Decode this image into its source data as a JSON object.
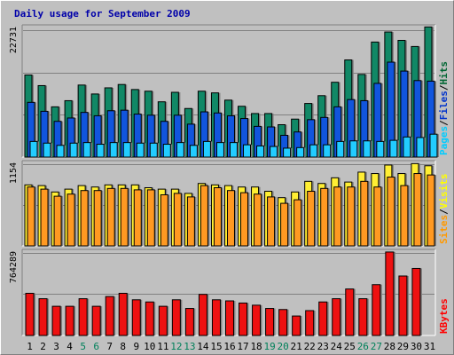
{
  "chart_data": [
    {
      "type": "bar",
      "title": "Daily usage for September 2009",
      "max_label": "22731",
      "ymax": 22731,
      "categories": [
        "1",
        "2",
        "3",
        "4",
        "5",
        "6",
        "7",
        "8",
        "9",
        "10",
        "11",
        "12",
        "13",
        "14",
        "15",
        "16",
        "17",
        "18",
        "19",
        "20",
        "21",
        "22",
        "23",
        "24",
        "25",
        "26",
        "27",
        "28",
        "29",
        "30",
        "31"
      ],
      "weekend_days": [
        "5",
        "6",
        "12",
        "13",
        "19",
        "20",
        "26",
        "27"
      ],
      "legend": [
        {
          "label": "Hits",
          "color": "#006633"
        },
        {
          "label": "Files",
          "color": "#0033cc"
        },
        {
          "label": "Pages",
          "color": "#00ccff"
        }
      ],
      "series": [
        {
          "name": "Hits",
          "color": "#118866",
          "values": [
            14700,
            12800,
            9000,
            10100,
            12900,
            11300,
            12400,
            13000,
            12100,
            11800,
            9900,
            11600,
            8700,
            11800,
            11500,
            10200,
            9100,
            7800,
            7800,
            5800,
            6800,
            9600,
            11000,
            13400,
            17400,
            14800,
            20600,
            22400,
            20900,
            19800,
            23300
          ]
        },
        {
          "name": "Files",
          "color": "#1155dd",
          "values": [
            9800,
            8200,
            6400,
            7000,
            8000,
            7400,
            8300,
            8400,
            7700,
            7500,
            6400,
            7500,
            5900,
            8100,
            7900,
            7400,
            6900,
            5500,
            5400,
            3900,
            4500,
            6700,
            7100,
            9000,
            10300,
            10100,
            13200,
            17000,
            15400,
            13700,
            13600
          ]
        },
        {
          "name": "Pages",
          "color": "#22ccff",
          "values": [
            2800,
            2500,
            2100,
            2500,
            2600,
            2300,
            2600,
            2600,
            2500,
            2500,
            2300,
            2600,
            2100,
            2800,
            2600,
            2600,
            2200,
            2000,
            1900,
            1600,
            1700,
            2200,
            2200,
            2800,
            2900,
            2900,
            2800,
            3000,
            3600,
            3500,
            4100
          ]
        }
      ]
    },
    {
      "type": "bar",
      "max_label": "1154",
      "ymax": 1154,
      "categories": [
        "1",
        "2",
        "3",
        "4",
        "5",
        "6",
        "7",
        "8",
        "9",
        "10",
        "11",
        "12",
        "13",
        "14",
        "15",
        "16",
        "17",
        "18",
        "19",
        "20",
        "21",
        "22",
        "23",
        "24",
        "25",
        "26",
        "27",
        "28",
        "29",
        "30",
        "31"
      ],
      "legend": [
        {
          "label": "Visits",
          "color": "#ffff00"
        },
        {
          "label": "Sites",
          "color": "#ff9900"
        }
      ],
      "series": [
        {
          "name": "Visits",
          "color": "#ffee33",
          "values": [
            860,
            850,
            760,
            800,
            850,
            830,
            860,
            860,
            860,
            820,
            800,
            800,
            740,
            880,
            860,
            850,
            830,
            830,
            770,
            680,
            760,
            910,
            880,
            960,
            900,
            1040,
            1020,
            1140,
            1020,
            1160,
            1130
          ]
        },
        {
          "name": "Sites",
          "color": "#ff9922",
          "values": [
            830,
            800,
            700,
            730,
            780,
            780,
            810,
            810,
            790,
            790,
            720,
            740,
            690,
            850,
            820,
            780,
            750,
            730,
            690,
            600,
            650,
            770,
            810,
            830,
            830,
            910,
            830,
            970,
            850,
            1020,
            1000
          ]
        }
      ]
    },
    {
      "type": "bar",
      "max_label": "764289",
      "ymax": 764289,
      "ylabel": "KBytes",
      "categories": [
        "1",
        "2",
        "3",
        "4",
        "5",
        "6",
        "7",
        "8",
        "9",
        "10",
        "11",
        "12",
        "13",
        "14",
        "15",
        "16",
        "17",
        "18",
        "19",
        "20",
        "21",
        "22",
        "23",
        "24",
        "25",
        "26",
        "27",
        "28",
        "29",
        "30",
        "31"
      ],
      "legend": [
        {
          "label": "KBytes",
          "color": "#ff0000"
        }
      ],
      "series": [
        {
          "name": "KBytes",
          "color": "#ee1111",
          "values": [
            390000,
            340000,
            270000,
            270000,
            340000,
            270000,
            360000,
            390000,
            330000,
            310000,
            270000,
            330000,
            250000,
            380000,
            330000,
            320000,
            300000,
            280000,
            250000,
            240000,
            180000,
            230000,
            310000,
            340000,
            430000,
            340000,
            470000,
            772000,
            550000,
            620000,
            0
          ]
        }
      ]
    }
  ]
}
